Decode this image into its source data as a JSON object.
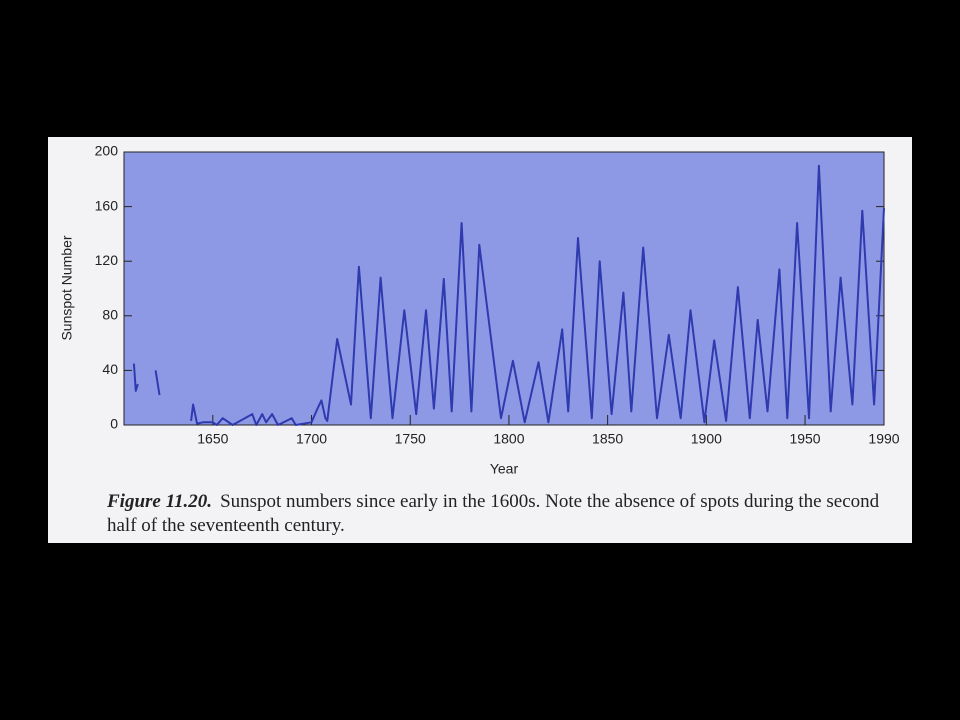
{
  "chart_data": {
    "type": "line",
    "xlabel": "Year",
    "ylabel": "Sunspot Number",
    "caption": {
      "label": "Figure 11.20.",
      "text": "Sunspot numbers since early in the 1600s. Note the absence of spots during the second half of the seventeenth century."
    },
    "x": [
      1610,
      1611,
      1612,
      1614,
      1621,
      1623,
      1625,
      1639,
      1640,
      1641,
      1642,
      1645,
      1650,
      1652,
      1655,
      1660,
      1670,
      1672,
      1675,
      1677,
      1680,
      1683,
      1690,
      1692,
      1700,
      1703,
      1705,
      1707,
      1708,
      1713,
      1720,
      1724,
      1730,
      1735,
      1741,
      1747,
      1753,
      1758,
      1762,
      1767,
      1771,
      1776,
      1781,
      1785,
      1796,
      1802,
      1808,
      1815,
      1820,
      1827,
      1830,
      1835,
      1842,
      1846,
      1852,
      1858,
      1862,
      1868,
      1875,
      1881,
      1887,
      1892,
      1899,
      1904,
      1910,
      1916,
      1922,
      1926,
      1931,
      1937,
      1941,
      1946,
      1952,
      1957,
      1963,
      1968,
      1974,
      1979,
      1985,
      1990
    ],
    "values": [
      45,
      25,
      30,
      null,
      40,
      22,
      null,
      3,
      15,
      8,
      1,
      2,
      2,
      0,
      5,
      0,
      8,
      0,
      8,
      2,
      8,
      0,
      5,
      0,
      2,
      12,
      18,
      5,
      3,
      63,
      15,
      116,
      5,
      108,
      5,
      84,
      8,
      84,
      12,
      107,
      10,
      148,
      10,
      132,
      5,
      47,
      2,
      46,
      2,
      70,
      10,
      137,
      5,
      120,
      8,
      97,
      10,
      130,
      5,
      66,
      5,
      84,
      2,
      62,
      3,
      101,
      5,
      77,
      10,
      114,
      5,
      148,
      5,
      190,
      10,
      108,
      15,
      157,
      15,
      159
    ],
    "color": "#2f3aae",
    "xlim": [
      1605,
      1990
    ],
    "ylim": [
      0,
      200
    ],
    "xticks": [
      1650,
      1700,
      1750,
      1800,
      1850,
      1900,
      1950,
      1990
    ],
    "yticks": [
      0,
      40,
      80,
      120,
      160,
      200
    ]
  }
}
